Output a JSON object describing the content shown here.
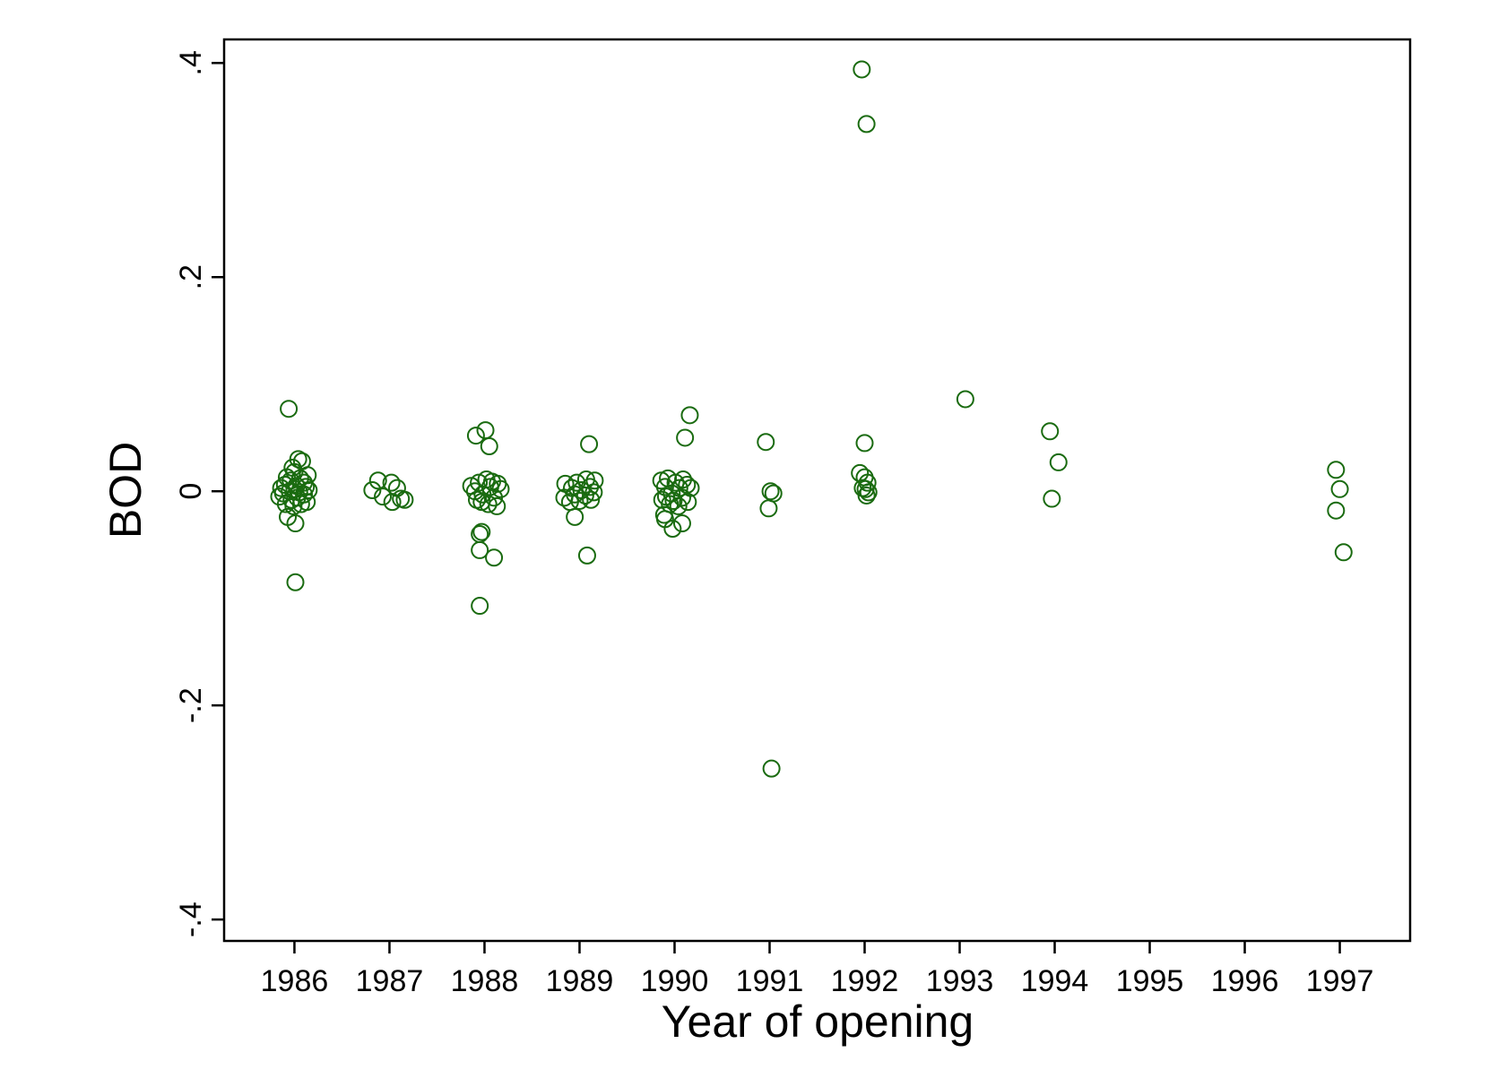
{
  "chart_data": {
    "type": "scatter",
    "title": "",
    "xlabel": "Year of opening",
    "ylabel": "BOD",
    "xlim": [
      1985.26,
      1997.74
    ],
    "ylim": [
      -0.42,
      0.422
    ],
    "x_ticks": [
      1986,
      1987,
      1988,
      1989,
      1990,
      1991,
      1992,
      1993,
      1994,
      1995,
      1996,
      1997
    ],
    "x_tick_labels": [
      "1986",
      "1987",
      "1988",
      "1989",
      "1990",
      "1991",
      "1992",
      "1993",
      "1994",
      "1995",
      "1996",
      "1997"
    ],
    "y_ticks": [
      -0.4,
      -0.2,
      0,
      0.2,
      0.4
    ],
    "y_tick_labels": [
      "-.4",
      "-.2",
      "0",
      ".2",
      ".4"
    ],
    "grid": false,
    "legend": "none",
    "marker": "hollow-circle",
    "colors": {
      "marker": "#1a6b10",
      "axis": "#000000",
      "background": "#ffffff"
    },
    "series": [
      {
        "points": [
          [
            1985.94,
            0.077
          ],
          [
            1986.04,
            0.03
          ],
          [
            1986.08,
            0.028
          ],
          [
            1985.98,
            0.022
          ],
          [
            1986.0,
            0.018
          ],
          [
            1986.14,
            0.015
          ],
          [
            1985.92,
            0.013
          ],
          [
            1986.06,
            0.012
          ],
          [
            1985.96,
            0.01
          ],
          [
            1986.1,
            0.008
          ],
          [
            1985.9,
            0.006
          ],
          [
            1986.02,
            0.005
          ],
          [
            1986.12,
            0.004
          ],
          [
            1985.86,
            0.003
          ],
          [
            1986.0,
            0.002
          ],
          [
            1986.15,
            0.001
          ],
          [
            1985.95,
            0.0
          ],
          [
            1986.05,
            -0.001
          ],
          [
            1985.88,
            -0.002
          ],
          [
            1986.1,
            -0.003
          ],
          [
            1985.84,
            -0.005
          ],
          [
            1986.03,
            -0.006
          ],
          [
            1985.97,
            -0.008
          ],
          [
            1986.13,
            -0.01
          ],
          [
            1985.91,
            -0.012
          ],
          [
            1986.07,
            -0.012
          ],
          [
            1985.99,
            -0.014
          ],
          [
            1985.93,
            -0.024
          ],
          [
            1986.01,
            -0.03
          ],
          [
            1986.01,
            -0.085
          ],
          [
            1986.82,
            0.001
          ],
          [
            1986.88,
            0.01
          ],
          [
            1986.93,
            -0.005
          ],
          [
            1987.02,
            0.008
          ],
          [
            1987.08,
            0.003
          ],
          [
            1987.03,
            -0.01
          ],
          [
            1987.12,
            -0.007
          ],
          [
            1987.16,
            -0.008
          ],
          [
            1987.91,
            0.052
          ],
          [
            1988.01,
            0.057
          ],
          [
            1988.05,
            0.042
          ],
          [
            1987.86,
            0.005
          ],
          [
            1987.9,
            0.0
          ],
          [
            1987.94,
            0.008
          ],
          [
            1987.98,
            -0.003
          ],
          [
            1988.02,
            0.011
          ],
          [
            1988.06,
            0.004
          ],
          [
            1988.1,
            -0.006
          ],
          [
            1988.14,
            0.007
          ],
          [
            1988.17,
            0.002
          ],
          [
            1987.92,
            -0.008
          ],
          [
            1987.97,
            -0.01
          ],
          [
            1988.04,
            -0.012
          ],
          [
            1988.08,
            0.009
          ],
          [
            1988.13,
            -0.014
          ],
          [
            1987.95,
            -0.04
          ],
          [
            1987.97,
            -0.038
          ],
          [
            1987.95,
            -0.055
          ],
          [
            1988.1,
            -0.062
          ],
          [
            1987.95,
            -0.107
          ],
          [
            1989.1,
            0.044
          ],
          [
            1988.85,
            0.007
          ],
          [
            1988.92,
            0.003
          ],
          [
            1988.97,
            0.008
          ],
          [
            1989.02,
            0.001
          ],
          [
            1989.07,
            0.011
          ],
          [
            1989.11,
            0.004
          ],
          [
            1989.16,
            0.01
          ],
          [
            1988.84,
            -0.006
          ],
          [
            1988.9,
            -0.01
          ],
          [
            1988.95,
            -0.003
          ],
          [
            1989.0,
            -0.009
          ],
          [
            1989.06,
            -0.004
          ],
          [
            1989.12,
            -0.008
          ],
          [
            1989.15,
            -0.001
          ],
          [
            1988.95,
            -0.024
          ],
          [
            1989.08,
            -0.06
          ],
          [
            1990.16,
            0.071
          ],
          [
            1990.11,
            0.05
          ],
          [
            1989.86,
            0.01
          ],
          [
            1989.9,
            0.004
          ],
          [
            1989.93,
            0.012
          ],
          [
            1989.97,
            -0.002
          ],
          [
            1990.01,
            0.008
          ],
          [
            1990.05,
            0.003
          ],
          [
            1990.09,
            0.011
          ],
          [
            1990.13,
            0.006
          ],
          [
            1990.17,
            0.003
          ],
          [
            1989.87,
            -0.008
          ],
          [
            1989.91,
            -0.005
          ],
          [
            1989.95,
            -0.012
          ],
          [
            1989.99,
            -0.009
          ],
          [
            1990.04,
            -0.014
          ],
          [
            1990.08,
            -0.006
          ],
          [
            1990.14,
            -0.01
          ],
          [
            1989.89,
            -0.022
          ],
          [
            1989.9,
            -0.026
          ],
          [
            1990.08,
            -0.03
          ],
          [
            1989.98,
            -0.035
          ],
          [
            1990.96,
            0.046
          ],
          [
            1991.01,
            0.0
          ],
          [
            1991.04,
            -0.002
          ],
          [
            1990.99,
            -0.016
          ],
          [
            1991.02,
            -0.259
          ],
          [
            1991.97,
            0.394
          ],
          [
            1992.02,
            0.343
          ],
          [
            1992.0,
            0.045
          ],
          [
            1991.95,
            0.017
          ],
          [
            1992.0,
            0.013
          ],
          [
            1992.03,
            0.008
          ],
          [
            1991.98,
            0.003
          ],
          [
            1992.01,
            0.002
          ],
          [
            1992.04,
            -0.001
          ],
          [
            1992.02,
            -0.004
          ],
          [
            1993.06,
            0.086
          ],
          [
            1993.95,
            0.056
          ],
          [
            1994.04,
            0.027
          ],
          [
            1993.97,
            -0.007
          ],
          [
            1996.96,
            0.02
          ],
          [
            1997.0,
            0.002
          ],
          [
            1996.96,
            -0.018
          ],
          [
            1997.04,
            -0.057
          ]
        ]
      }
    ]
  }
}
